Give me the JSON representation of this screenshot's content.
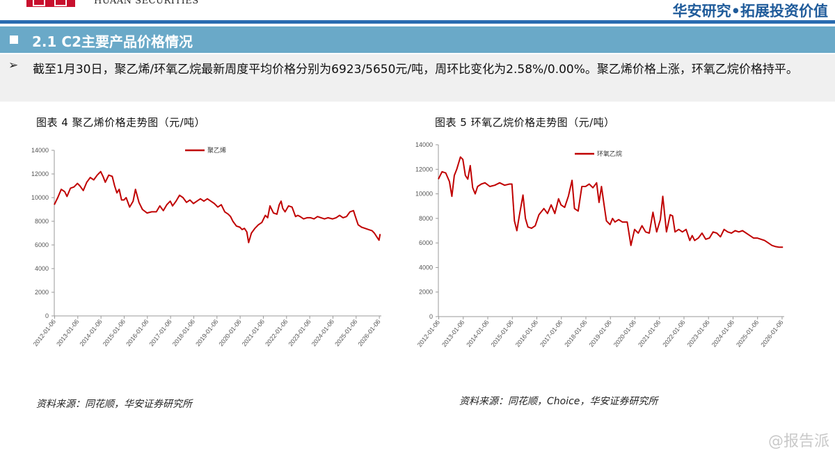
{
  "header": {
    "company_en": "HUAAN SECURITIES",
    "slogan": "华安研究•拓展投资价值",
    "accent_color": "#c8102e",
    "slogan_color": "#1f5b9a"
  },
  "section": {
    "title": "2.1 C2主要产品价格情况"
  },
  "summary": {
    "bullet": "➢",
    "text": "截至1月30日，聚乙烯/环氧乙烷最新周度平均价格分别为6923/5650元/吨，周环比变化为2.58%/0.00%。聚乙烯价格上涨，环氧乙烷价格持平。"
  },
  "figures": [
    {
      "title": "图表 4 聚乙烯价格走势图（元/吨）",
      "source": "资料来源：同花顺，华安证券研究所"
    },
    {
      "title": "图表 5 环氧乙烷价格走势图（元/吨）",
      "source": "资料来源：同花顺，Choice，华安证券研究所"
    }
  ],
  "watermark": "@报告派",
  "chart_data": [
    {
      "type": "line",
      "title": "图表 4 聚乙烯价格走势图（元/吨）",
      "ylim": [
        0,
        14000
      ],
      "yticks": [
        "0",
        "2000",
        "4000",
        "6000",
        "8000",
        "10000",
        "12000",
        "14000"
      ],
      "xlim": [
        2012.0,
        2026.1
      ],
      "xticks": [
        "2012-01-06",
        "2013-01-06",
        "2014-01-06",
        "2015-01-06",
        "2016-01-06",
        "2017-01-06",
        "2018-01-06",
        "2019-01-06",
        "2020-01-06",
        "2021-01-06",
        "2022-01-06",
        "2023-01-06",
        "2024-01-06",
        "2025-01-06",
        "2026-01-06"
      ],
      "legend": "top-center",
      "grid": false,
      "color": "#c00000",
      "series": [
        {
          "name": "聚乙烯",
          "x": [
            2012.0,
            2012.15,
            2012.3,
            2012.45,
            2012.55,
            2012.7,
            2012.85,
            2013.0,
            2013.1,
            2013.25,
            2013.4,
            2013.55,
            2013.7,
            2013.85,
            2014.0,
            2014.1,
            2014.2,
            2014.35,
            2014.5,
            2014.6,
            2014.7,
            2014.8,
            2014.9,
            2015.0,
            2015.1,
            2015.25,
            2015.4,
            2015.5,
            2015.65,
            2015.8,
            2016.0,
            2016.2,
            2016.4,
            2016.55,
            2016.7,
            2016.85,
            2017.0,
            2017.1,
            2017.25,
            2017.4,
            2017.55,
            2017.7,
            2017.85,
            2018.0,
            2018.15,
            2018.3,
            2018.45,
            2018.6,
            2018.75,
            2018.9,
            2019.05,
            2019.2,
            2019.35,
            2019.5,
            2019.6,
            2019.7,
            2019.85,
            2020.0,
            2020.1,
            2020.2,
            2020.3,
            2020.38,
            2020.5,
            2020.65,
            2020.8,
            2020.95,
            2021.1,
            2021.2,
            2021.3,
            2021.45,
            2021.6,
            2021.7,
            2021.78,
            2021.85,
            2021.95,
            2022.1,
            2022.25,
            2022.4,
            2022.5,
            2022.6,
            2022.75,
            2022.9,
            2023.05,
            2023.2,
            2023.35,
            2023.5,
            2023.65,
            2023.8,
            2024.0,
            2024.15,
            2024.3,
            2024.45,
            2024.6,
            2024.75,
            2024.9,
            2025.0,
            2025.1,
            2025.25,
            2025.4,
            2025.55,
            2025.7,
            2025.8,
            2025.9,
            2026.0,
            2026.05
          ],
          "y": [
            9400,
            10000,
            10700,
            10500,
            10100,
            10800,
            10900,
            11200,
            11000,
            10600,
            11300,
            11700,
            11500,
            11900,
            12200,
            11800,
            11300,
            11900,
            11800,
            11000,
            10400,
            10700,
            9800,
            9800,
            10000,
            9200,
            9700,
            10700,
            9600,
            9000,
            8700,
            8800,
            8800,
            9300,
            8900,
            9400,
            9700,
            9300,
            9700,
            10200,
            10000,
            9600,
            9800,
            9500,
            9700,
            9900,
            9700,
            9900,
            9700,
            9500,
            9200,
            9400,
            8800,
            8600,
            8400,
            8000,
            7600,
            7500,
            7300,
            7400,
            7100,
            6200,
            7000,
            7400,
            7700,
            7900,
            8500,
            8300,
            9300,
            8700,
            8600,
            9400,
            9700,
            9100,
            8800,
            9300,
            9200,
            8400,
            8500,
            8400,
            8200,
            8300,
            8300,
            8200,
            8400,
            8300,
            8200,
            8300,
            8200,
            8300,
            8500,
            8300,
            8400,
            8800,
            8900,
            8300,
            7700,
            7500,
            7400,
            7300,
            7200,
            7000,
            6700,
            6400,
            6923
          ]
        }
      ]
    },
    {
      "type": "line",
      "title": "图表 5 环氧乙烷价格走势图（元/吨）",
      "ylim": [
        0,
        14000
      ],
      "yticks": [
        "0",
        "2000",
        "4000",
        "6000",
        "8000",
        "10000",
        "12000",
        "14000"
      ],
      "xlim": [
        2012.0,
        2026.1
      ],
      "xticks": [
        "2012-01-06",
        "2013-01-06",
        "2014-01-06",
        "2015-01-06",
        "2016-01-06",
        "2017-01-06",
        "2018-01-06",
        "2019-01-06",
        "2020-01-06",
        "2021-01-06",
        "2022-01-06",
        "2023-01-06",
        "2024-01-06",
        "2025-01-06",
        "2026-01-06"
      ],
      "legend": "top-center",
      "grid": false,
      "color": "#c00000",
      "series": [
        {
          "name": "环氧乙烷",
          "x": [
            2012.0,
            2012.15,
            2012.3,
            2012.45,
            2012.55,
            2012.65,
            2012.75,
            2012.9,
            2013.0,
            2013.1,
            2013.2,
            2013.3,
            2013.4,
            2013.5,
            2013.6,
            2013.75,
            2013.9,
            2014.1,
            2014.3,
            2014.5,
            2014.7,
            2014.9,
            2015.0,
            2015.1,
            2015.2,
            2015.3,
            2015.45,
            2015.55,
            2015.65,
            2015.8,
            2015.95,
            2016.1,
            2016.3,
            2016.45,
            2016.6,
            2016.75,
            2016.9,
            2017.0,
            2017.15,
            2017.3,
            2017.45,
            2017.55,
            2017.7,
            2017.85,
            2018.0,
            2018.15,
            2018.3,
            2018.45,
            2018.55,
            2018.65,
            2018.75,
            2018.85,
            2019.0,
            2019.1,
            2019.2,
            2019.35,
            2019.5,
            2019.7,
            2019.85,
            2020.0,
            2020.15,
            2020.3,
            2020.45,
            2020.6,
            2020.75,
            2020.9,
            2021.05,
            2021.15,
            2021.3,
            2021.45,
            2021.55,
            2021.65,
            2021.8,
            2021.95,
            2022.1,
            2022.25,
            2022.35,
            2022.45,
            2022.6,
            2022.75,
            2022.9,
            2023.05,
            2023.2,
            2023.35,
            2023.5,
            2023.65,
            2023.8,
            2023.95,
            2024.1,
            2024.25,
            2024.4,
            2024.55,
            2024.7,
            2024.85,
            2025.0,
            2025.15,
            2025.3,
            2025.45,
            2025.6,
            2025.75,
            2025.9,
            2026.0,
            2026.05
          ],
          "y": [
            11200,
            11800,
            11700,
            11000,
            9800,
            11500,
            12000,
            13000,
            12800,
            11500,
            11200,
            12300,
            10500,
            10000,
            10600,
            10800,
            10900,
            10600,
            10700,
            10900,
            10700,
            10800,
            10800,
            7800,
            7000,
            8200,
            9900,
            8000,
            7300,
            7200,
            7400,
            8300,
            8800,
            8400,
            9100,
            8400,
            9600,
            9100,
            8900,
            9800,
            11100,
            8800,
            8600,
            10600,
            10600,
            10800,
            10500,
            10900,
            9300,
            10600,
            9200,
            7800,
            7500,
            8000,
            7700,
            7900,
            7700,
            7700,
            5800,
            7100,
            6800,
            7400,
            6900,
            6800,
            8500,
            6900,
            7900,
            9800,
            6900,
            8300,
            8200,
            6900,
            7100,
            6900,
            7100,
            6200,
            6600,
            6200,
            6400,
            6800,
            6300,
            6400,
            6900,
            6800,
            6500,
            7100,
            6900,
            6800,
            7000,
            6900,
            7000,
            6800,
            6600,
            6400,
            6400,
            6300,
            6200,
            6000,
            5800,
            5700,
            5650,
            5650,
            5650
          ]
        }
      ]
    }
  ]
}
